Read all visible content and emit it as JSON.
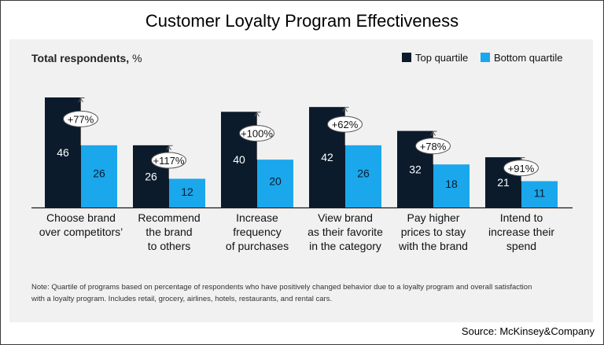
{
  "title": "Customer Loyalty Program Effectiveness",
  "source": "Source: McKinsey&Company",
  "chart_data": {
    "type": "bar",
    "ylabel_bold": "Total respondents,",
    "ylabel_unit": " %",
    "categories": [
      [
        "Choose brand",
        "over competitors’"
      ],
      [
        "Recommend",
        "the brand",
        "to others"
      ],
      [
        "Increase",
        "frequency",
        "of purchases"
      ],
      [
        "View brand",
        "as their favorite",
        "in the category"
      ],
      [
        "Pay higher",
        "prices to stay",
        "with the brand"
      ],
      [
        "Intend to",
        "increase their",
        "spend"
      ]
    ],
    "series": [
      {
        "name": "Top quartile",
        "color": "#0b1b2b",
        "values": [
          46,
          26,
          40,
          42,
          32,
          21
        ]
      },
      {
        "name": "Bottom quartile",
        "color": "#1aa7ec",
        "values": [
          26,
          12,
          20,
          26,
          18,
          11
        ]
      }
    ],
    "uplift": [
      "+77%",
      "+117%",
      "+100%",
      "+62%",
      "+78%",
      "+91%"
    ],
    "ylim": [
      0,
      46
    ],
    "legend_position": "top-right",
    "grid": false,
    "note_lines": [
      "Note: Quartile of programs based on percentage of respondents who have positively changed behavior due to a loyalty program and overall satisfaction",
      "with a loyalty program. Includes retail, grocery, airlines, hotels, restaurants, and rental cars."
    ]
  }
}
